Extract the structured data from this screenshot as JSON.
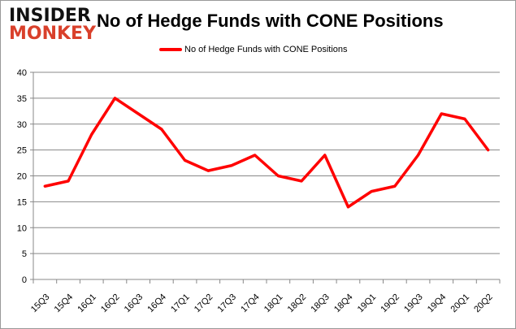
{
  "logo": {
    "line1": "INSIDER",
    "line2": "MONKEY"
  },
  "chart_data": {
    "type": "line",
    "title": "No of Hedge Funds with CONE Positions",
    "xlabel": "",
    "ylabel": "",
    "categories": [
      "15Q3",
      "15Q4",
      "16Q1",
      "16Q2",
      "16Q3",
      "16Q4",
      "17Q1",
      "17Q2",
      "17Q3",
      "17Q4",
      "18Q1",
      "18Q2",
      "18Q3",
      "18Q4",
      "19Q1",
      "19Q2",
      "19Q3",
      "19Q4",
      "20Q1",
      "20Q2"
    ],
    "series": [
      {
        "name": "No of Hedge Funds with CONE Positions",
        "color": "#ff0000",
        "values": [
          18,
          19,
          28,
          35,
          32,
          29,
          23,
          21,
          22,
          24,
          20,
          19,
          24,
          14,
          17,
          18,
          24,
          32,
          31,
          25
        ]
      }
    ],
    "ylim": [
      0,
      40
    ],
    "yticks": [
      0,
      5,
      10,
      15,
      20,
      25,
      30,
      35,
      40
    ],
    "grid": true,
    "legend": "top-center"
  }
}
